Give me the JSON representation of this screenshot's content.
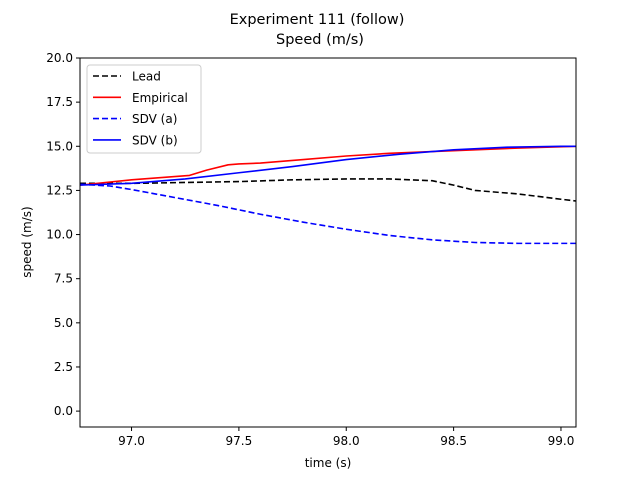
{
  "chart_data": {
    "type": "line",
    "title": "Experiment 111 (follow)",
    "subtitle": "Speed (m/s)",
    "xlabel": "time (s)",
    "ylabel": "speed (m/s)",
    "xlim": [
      96.76,
      99.07
    ],
    "ylim": [
      -0.9,
      20.0
    ],
    "xticks": [
      97.0,
      97.5,
      98.0,
      98.5,
      99.0
    ],
    "xtick_labels": [
      "97.0",
      "97.5",
      "98.0",
      "98.5",
      "99.0"
    ],
    "yticks": [
      0.0,
      2.5,
      5.0,
      7.5,
      10.0,
      12.5,
      15.0,
      17.5,
      20.0
    ],
    "ytick_labels": [
      "0.0",
      "2.5",
      "5.0",
      "7.5",
      "10.0",
      "12.5",
      "15.0",
      "17.5",
      "20.0"
    ],
    "grid": false,
    "legend_position": "top-left",
    "series": [
      {
        "name": "Lead",
        "color": "#000000",
        "style": "dashed",
        "x": [
          96.76,
          97.0,
          97.25,
          97.5,
          97.75,
          98.0,
          98.2,
          98.4,
          98.5,
          98.6,
          98.8,
          99.0,
          99.07
        ],
        "y": [
          12.9,
          12.9,
          12.95,
          13.0,
          13.1,
          13.15,
          13.15,
          13.05,
          12.8,
          12.5,
          12.3,
          12.0,
          11.9
        ]
      },
      {
        "name": "Empirical",
        "color": "#ff0000",
        "style": "solid",
        "x": [
          96.76,
          97.0,
          97.27,
          97.35,
          97.45,
          97.5,
          97.6,
          97.8,
          98.0,
          98.2,
          98.4,
          98.6,
          98.8,
          99.07
        ],
        "y": [
          12.8,
          13.1,
          13.35,
          13.65,
          13.95,
          14.0,
          14.05,
          14.25,
          14.45,
          14.6,
          14.7,
          14.8,
          14.9,
          15.0
        ]
      },
      {
        "name": "SDV (a)",
        "color": "#0000ff",
        "style": "dashed",
        "x": [
          96.76,
          96.9,
          97.0,
          97.2,
          97.4,
          97.6,
          97.8,
          98.0,
          98.2,
          98.4,
          98.6,
          98.8,
          99.0,
          99.07
        ],
        "y": [
          12.85,
          12.75,
          12.55,
          12.1,
          11.65,
          11.15,
          10.7,
          10.3,
          9.95,
          9.7,
          9.55,
          9.5,
          9.5,
          9.5
        ]
      },
      {
        "name": "SDV (b)",
        "color": "#0000ff",
        "style": "solid",
        "x": [
          96.76,
          97.0,
          97.25,
          97.5,
          97.75,
          98.0,
          98.25,
          98.5,
          98.75,
          99.0,
          99.07
        ],
        "y": [
          12.8,
          12.9,
          13.15,
          13.5,
          13.85,
          14.25,
          14.55,
          14.8,
          14.95,
          15.0,
          15.0
        ]
      }
    ]
  }
}
